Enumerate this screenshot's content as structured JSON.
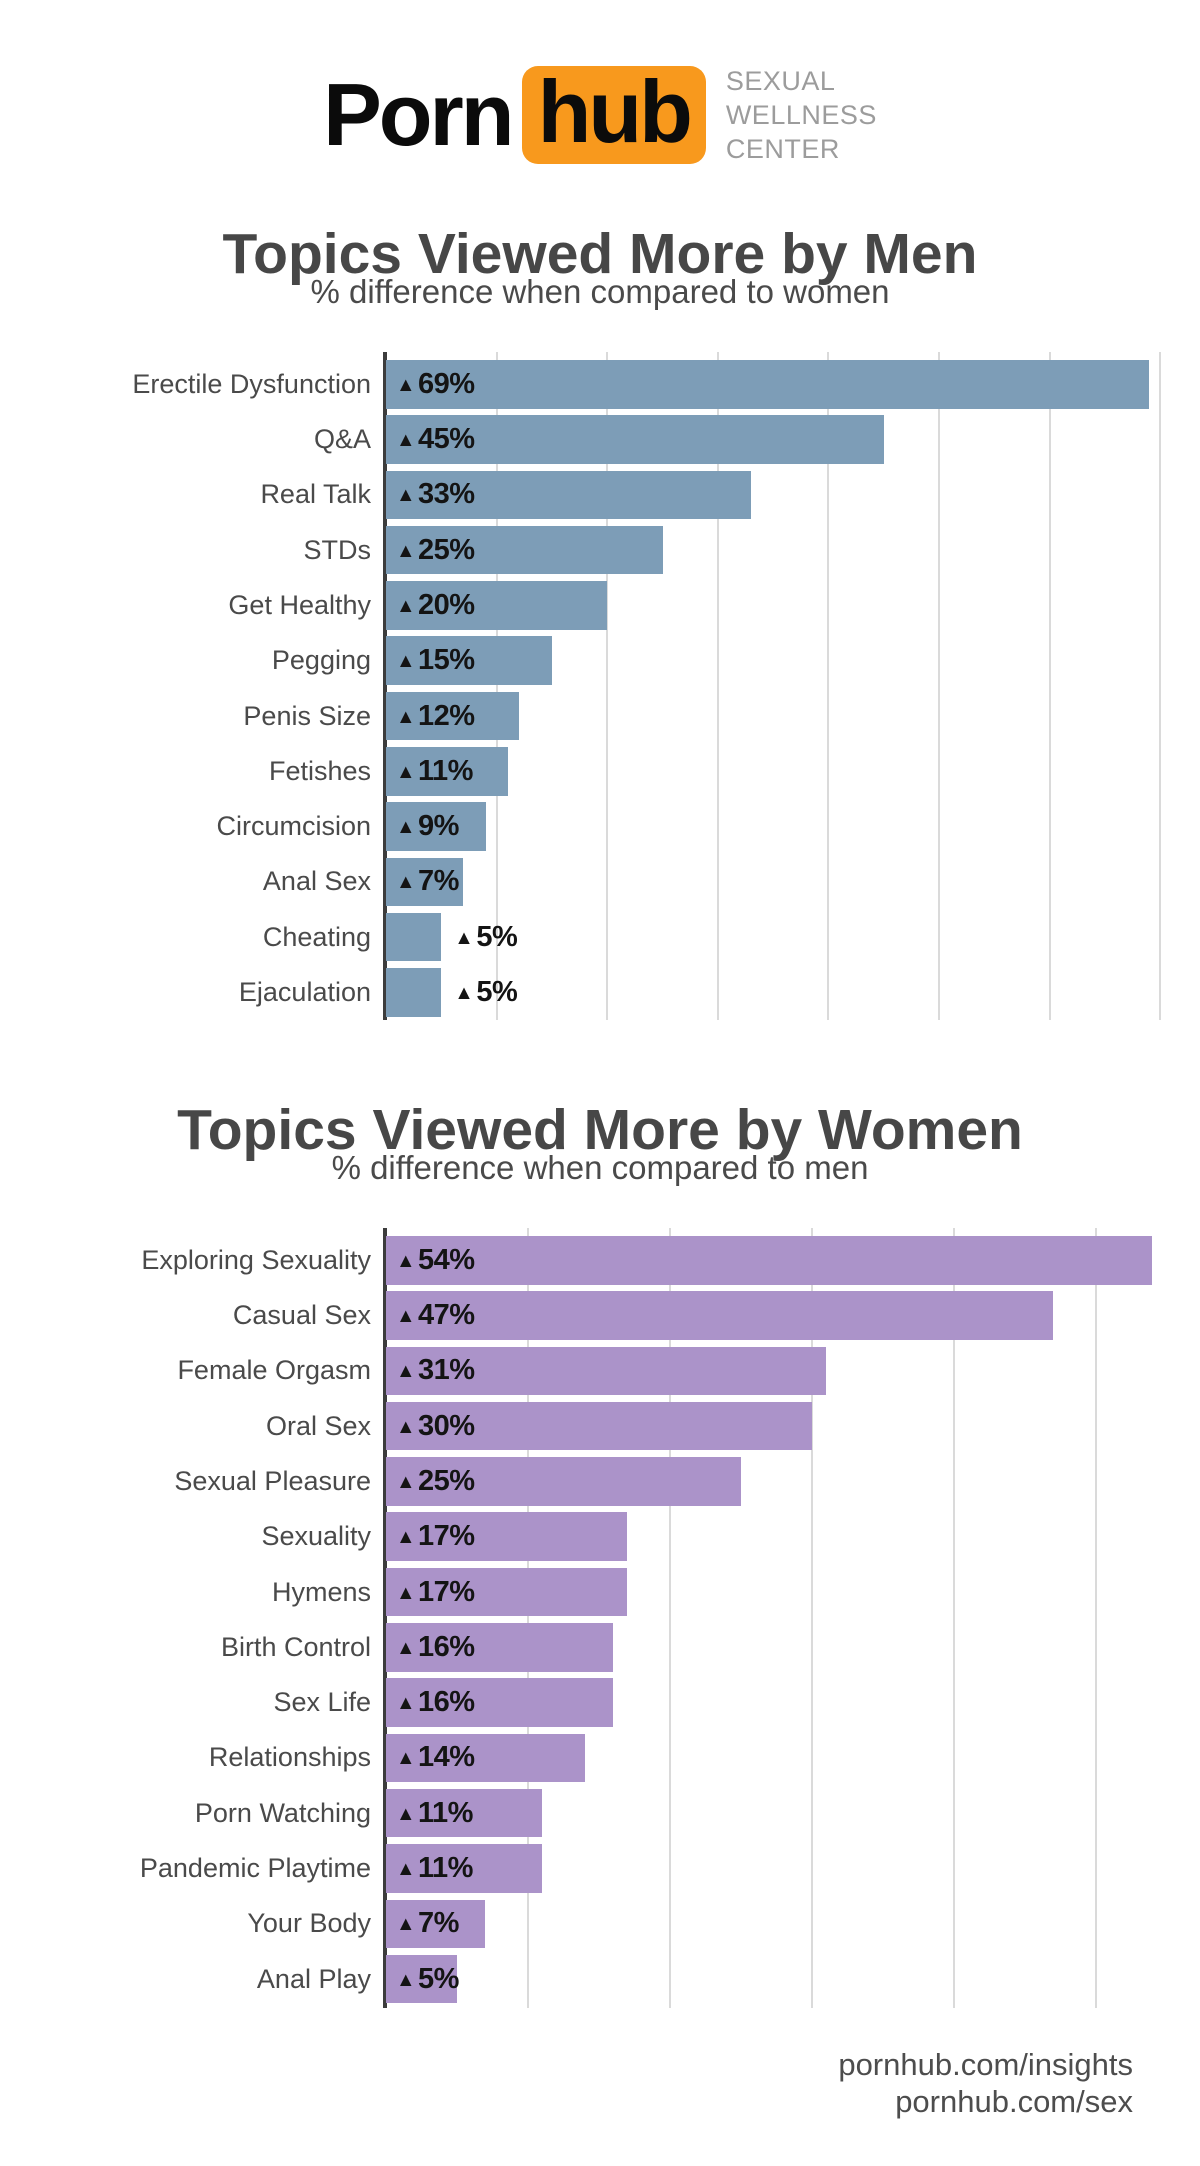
{
  "header": {
    "logo_part_1": "Porn",
    "logo_part_2": "hub",
    "brand_orange": "#f8991d",
    "tagline": [
      "SEXUAL",
      "WELLNESS",
      "CENTER"
    ]
  },
  "chart_data": [
    {
      "type": "bar",
      "orientation": "horizontal",
      "title": "Topics Viewed More by Men",
      "subtitle": "% difference when compared to women",
      "categories": [
        "Erectile Dysfunction",
        "Q&A",
        "Real Talk",
        "STDs",
        "Get Healthy",
        "Pegging",
        "Penis Size",
        "Fetishes",
        "Circumcision",
        "Anal Sex",
        "Cheating",
        "Ejaculation"
      ],
      "values": [
        69,
        45,
        33,
        25,
        20,
        15,
        12,
        11,
        9,
        7,
        5,
        5
      ],
      "value_prefix": "▲",
      "value_suffix": "%",
      "bar_color": "#7d9db7",
      "xlim": [
        0,
        70.7
      ],
      "gridlines": [
        10,
        20,
        30,
        40,
        50,
        60,
        70
      ],
      "grid_on": true,
      "legend": "none",
      "outside_label_indices": [
        10,
        11
      ]
    },
    {
      "type": "bar",
      "orientation": "horizontal",
      "title": "Topics Viewed More by Women",
      "subtitle": "% difference when compared to men",
      "categories": [
        "Exploring Sexuality",
        "Casual Sex",
        "Female Orgasm",
        "Oral Sex",
        "Sexual Pleasure",
        "Sexuality",
        "Hymens",
        "Birth Control",
        "Sex Life",
        "Relationships",
        "Porn Watching",
        "Pandemic Playtime",
        "Your Body",
        "Anal Play"
      ],
      "values": [
        54,
        47,
        31,
        30,
        25,
        17,
        17,
        16,
        16,
        14,
        11,
        11,
        7,
        5
      ],
      "value_prefix": "▲",
      "value_suffix": "%",
      "bar_color": "#ab93c9",
      "xlim": [
        0,
        55.1
      ],
      "gridlines": [
        10,
        20,
        30,
        40,
        50
      ],
      "grid_on": true,
      "legend": "none",
      "outside_label_indices": []
    }
  ],
  "footer": {
    "lines": [
      "pornhub.com/insights",
      "pornhub.com/sex"
    ]
  }
}
